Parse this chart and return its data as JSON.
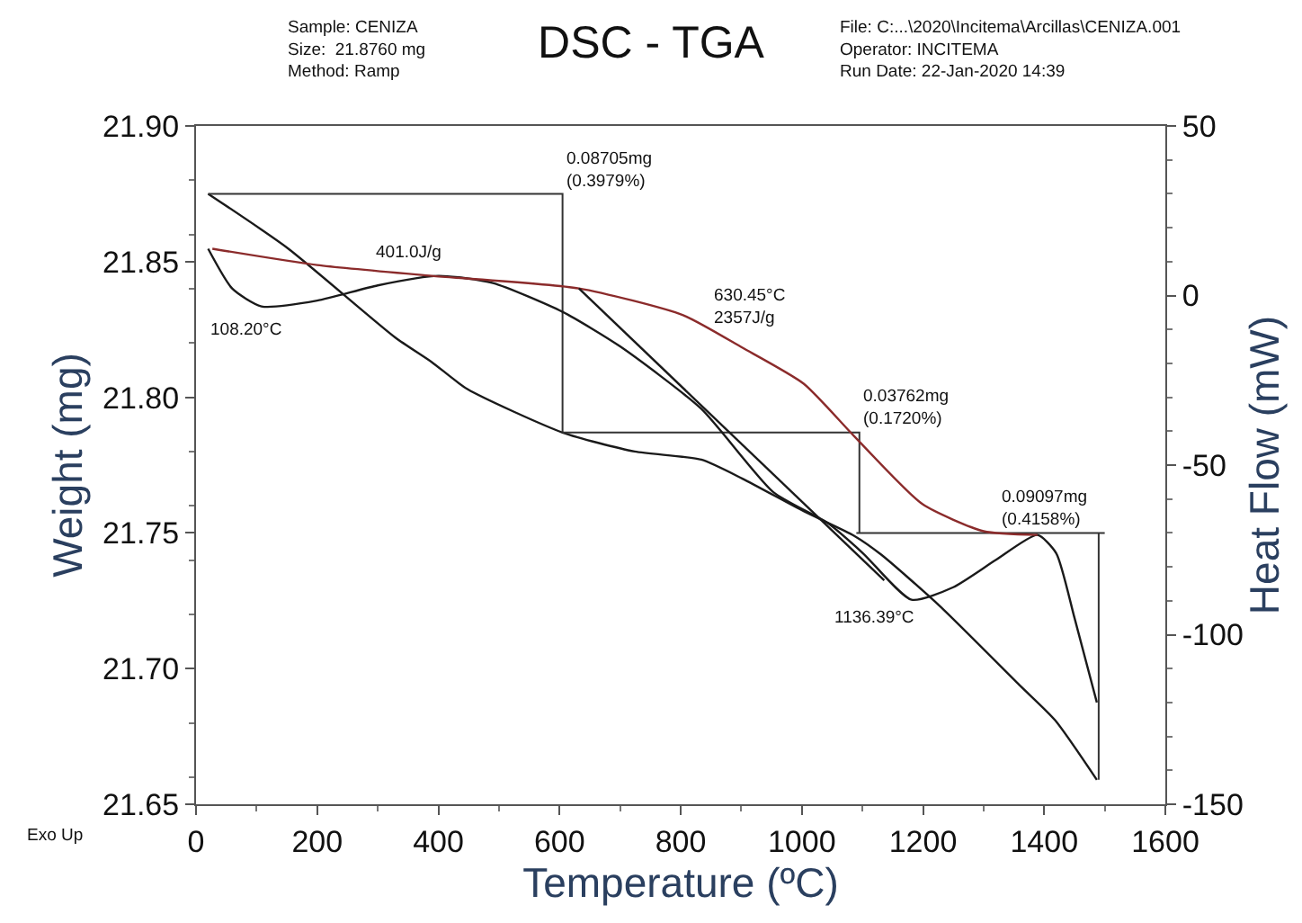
{
  "chart_data": {
    "type": "line",
    "title": "DSC - TGA",
    "xlabel": "Temperature (ºC)",
    "ylabel": "Weight (mg)",
    "y2label": "Heat Flow (mW)",
    "xlim": [
      0,
      1600
    ],
    "xticks": [
      0,
      200,
      400,
      600,
      800,
      1000,
      1200,
      1400,
      1600
    ],
    "ylim": [
      21.65,
      21.9
    ],
    "yticks": [
      21.65,
      {
        "value": 21.7,
        "label": "21.70"
      },
      21.75,
      {
        "value": 21.8,
        "label": "21.80"
      },
      21.85,
      {
        "value": 21.9,
        "label": "21.90"
      }
    ],
    "y2lim": [
      -150,
      50
    ],
    "y2ticks": [
      -150,
      -100,
      -50,
      0,
      50
    ],
    "marker": "none",
    "line_style": "solid",
    "series": [
      {
        "color": "#1a1a1a",
        "x": [
          20,
          151,
          329,
          389,
          448,
          605,
          724,
          834,
          902,
          1003,
          1086,
          1131,
          1228,
          1359,
          1418,
          1487
        ],
        "values": [
          21.875,
          21.855,
          21.822,
          21.813,
          21.803,
          21.787,
          21.78,
          21.777,
          21.77,
          21.758,
          21.749,
          21.742,
          21.723,
          21.694,
          21.681,
          21.659
        ]
      },
      {
        "color": "#1a1a1a",
        "axis": "y2",
        "x": [
          20,
          60,
          108,
          200,
          300,
          400,
          490,
          605,
          700,
          834,
          953,
          1042,
          1101,
          1181,
          1250,
          1320,
          1389,
          1420,
          1450,
          1487
        ],
        "values": [
          13.8,
          2,
          -3.2,
          -1.5,
          3,
          5.8,
          3.7,
          -4.8,
          -15,
          -33.4,
          -58,
          -67,
          -76,
          -89.7,
          -86,
          -78,
          -70.6,
          -76,
          -95,
          -120
        ]
      },
      {
        "color": "#8b2b2b",
        "axis": "y2",
        "x": [
          27,
          200,
          389,
          632,
          804,
          902,
          1003,
          1086,
          1199,
          1300,
          1389
        ],
        "values": [
          13.8,
          9,
          5.8,
          2.1,
          -5.8,
          -15.4,
          -26.0,
          -41.4,
          -61.5,
          -69.5,
          -70.6
        ]
      },
      {
        "color": "#1a1a1a",
        "axis": "y2",
        "x": [
          632,
          1136
        ],
        "values": [
          2.1,
          -84
        ]
      },
      {
        "color": "#333333",
        "x": [
          20,
          605,
          605,
          null,
          605,
          1095,
          1095,
          null,
          1090,
          1500,
          1490,
          1490
        ],
        "values": [
          21.875,
          21.875,
          21.787,
          null,
          21.787,
          21.787,
          21.75,
          null,
          21.75,
          21.75,
          21.75,
          21.659
        ]
      }
    ],
    "annotations": [
      "Sample: CENIZA\nSize:  21.8760 mg\nMethod: Ramp",
      "File: C:...\\2020\\Incitema\\Arcillas\\CENIZA.001\nOperator: INCITEMA\nRun Date: 22-Jan-2020 14:39",
      "Exo Up",
      {
        "text": "0.08705mg\n(0.3979%)",
        "x": 605,
        "y": 21.875
      },
      {
        "text": "0.03762mg\n(0.1720%)",
        "x": 1095,
        "y": 21.787
      },
      {
        "text": "0.09097mg\n(0.4158%)",
        "x": 1490,
        "y": 21.75
      },
      {
        "text": "401.0J/g",
        "x": 290,
        "y": 21.848
      },
      "108.20°C",
      "630.45°C\n2357J/g",
      "1136.39°C"
    ]
  }
}
